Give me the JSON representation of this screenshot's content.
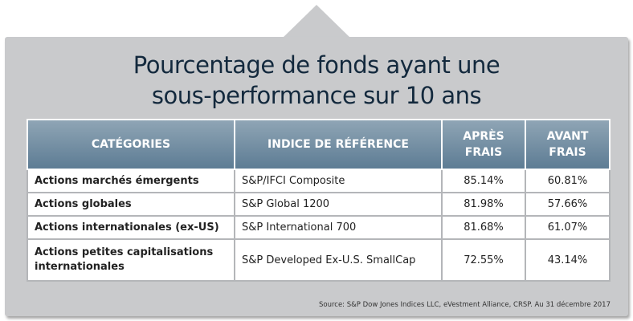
{
  "title_line1": "Pourcentage de fonds ayant une",
  "title_line2": "sous-performance sur 10 ans",
  "headers": {
    "category": "CATÉGORIES",
    "index": "INDICE DE RÉFÉRENCE",
    "after_fees_1": "APRÈS",
    "after_fees_2": "FRAIS",
    "before_fees_1": "AVANT",
    "before_fees_2": "FRAIS"
  },
  "rows": [
    {
      "category": "Actions marchés émergents",
      "category2": "",
      "index": "S&P/IFCI Composite",
      "after": "85.14%",
      "before": "60.81%"
    },
    {
      "category": "Actions globales",
      "category2": "",
      "index": "S&P Global 1200",
      "after": "81.98%",
      "before": "57.66%"
    },
    {
      "category": "Actions internationales (ex-US)",
      "category2": "",
      "index": "S&P International 700",
      "after": "81.68%",
      "before": "61.07%"
    },
    {
      "category": "Actions petites capitalisations",
      "category2": "internationales",
      "index": "S&P Developed Ex-U.S. SmallCap",
      "after": "72.55%",
      "before": "43.14%"
    }
  ],
  "source": "Source: S&P Dow Jones Indices LLC, eVestment Alliance, CRSP. Au 31 décembre 2017",
  "colors": {
    "panel": "#c9cacc",
    "header_top": "#8fa5b5",
    "header_bottom": "#5d7c94",
    "title": "#13293d"
  }
}
